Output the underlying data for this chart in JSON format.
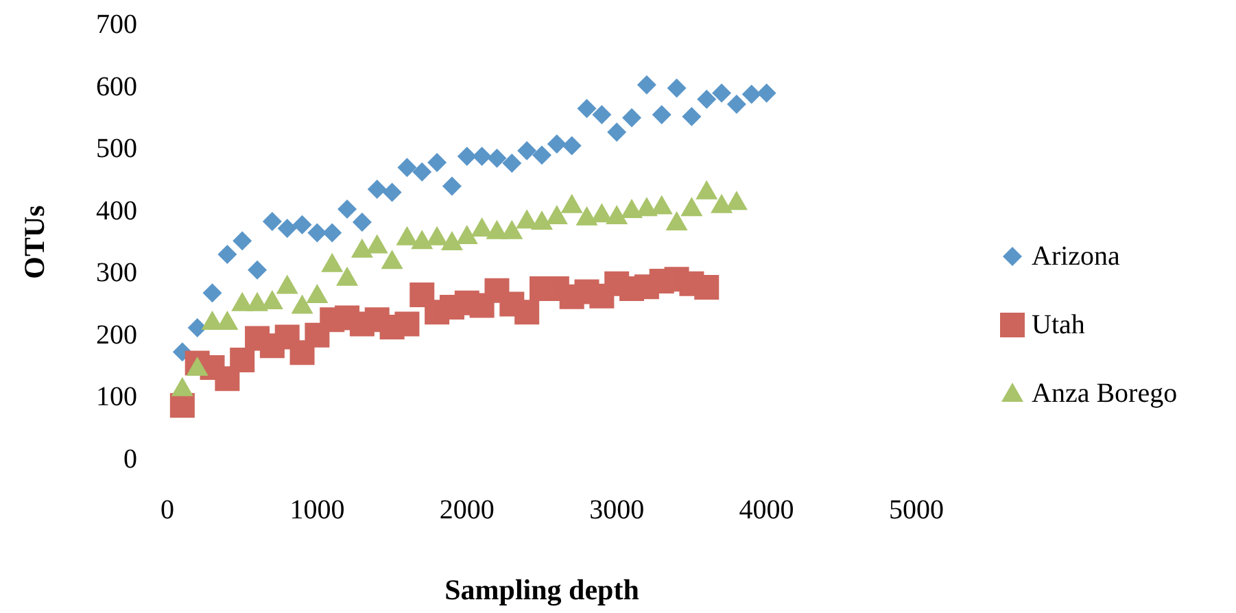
{
  "chart_data": {
    "type": "scatter",
    "xlabel": "Sampling depth",
    "ylabel": "OTUs",
    "xlim": [
      0,
      5000
    ],
    "xticks": [
      0,
      1000,
      2000,
      3000,
      4000,
      5000
    ],
    "ylim": [
      0,
      700
    ],
    "yticks": [
      0,
      100,
      200,
      300,
      400,
      500,
      600,
      700
    ],
    "grid": false,
    "legend": "right",
    "x": [
      100,
      200,
      300,
      400,
      500,
      600,
      700,
      800,
      900,
      1000,
      1100,
      1200,
      1300,
      1400,
      1500,
      1600,
      1700,
      1800,
      1900,
      2000,
      2100,
      2200,
      2300,
      2400,
      2500,
      2600,
      2700,
      2800,
      2900,
      3000,
      3100,
      3200,
      3300,
      3400,
      3500,
      3600,
      3700,
      3800,
      3900,
      4000
    ],
    "series": [
      {
        "name": "Arizona",
        "color": "#5b96c8",
        "marker": "diamond",
        "values": [
          173,
          212,
          268,
          330,
          352,
          305,
          383,
          372,
          378,
          365,
          365,
          403,
          382,
          435,
          430,
          470,
          463,
          478,
          440,
          488,
          488,
          485,
          477,
          497,
          490,
          508,
          505,
          565,
          555,
          527,
          550,
          603,
          555,
          598,
          552,
          580,
          590,
          572,
          588,
          590
        ]
      },
      {
        "name": "Utah",
        "color": "#cd655c",
        "marker": "square",
        "values": [
          87,
          155,
          148,
          130,
          160,
          195,
          183,
          197,
          172,
          200,
          225,
          228,
          218,
          225,
          213,
          218,
          265,
          237,
          245,
          252,
          248,
          272,
          250,
          237,
          275,
          275,
          262,
          270,
          263,
          283,
          275,
          278,
          287,
          290,
          283,
          277,
          null,
          null,
          null,
          null
        ]
      },
      {
        "name": "Anza Borego",
        "color": "#a9c46a",
        "marker": "triangle",
        "values": [
          115,
          148,
          222,
          222,
          252,
          252,
          255,
          280,
          248,
          265,
          315,
          293,
          338,
          345,
          320,
          358,
          352,
          358,
          350,
          360,
          372,
          368,
          368,
          385,
          383,
          392,
          410,
          390,
          395,
          392,
          402,
          405,
          408,
          382,
          405,
          432,
          410,
          415,
          null,
          null
        ]
      }
    ]
  }
}
